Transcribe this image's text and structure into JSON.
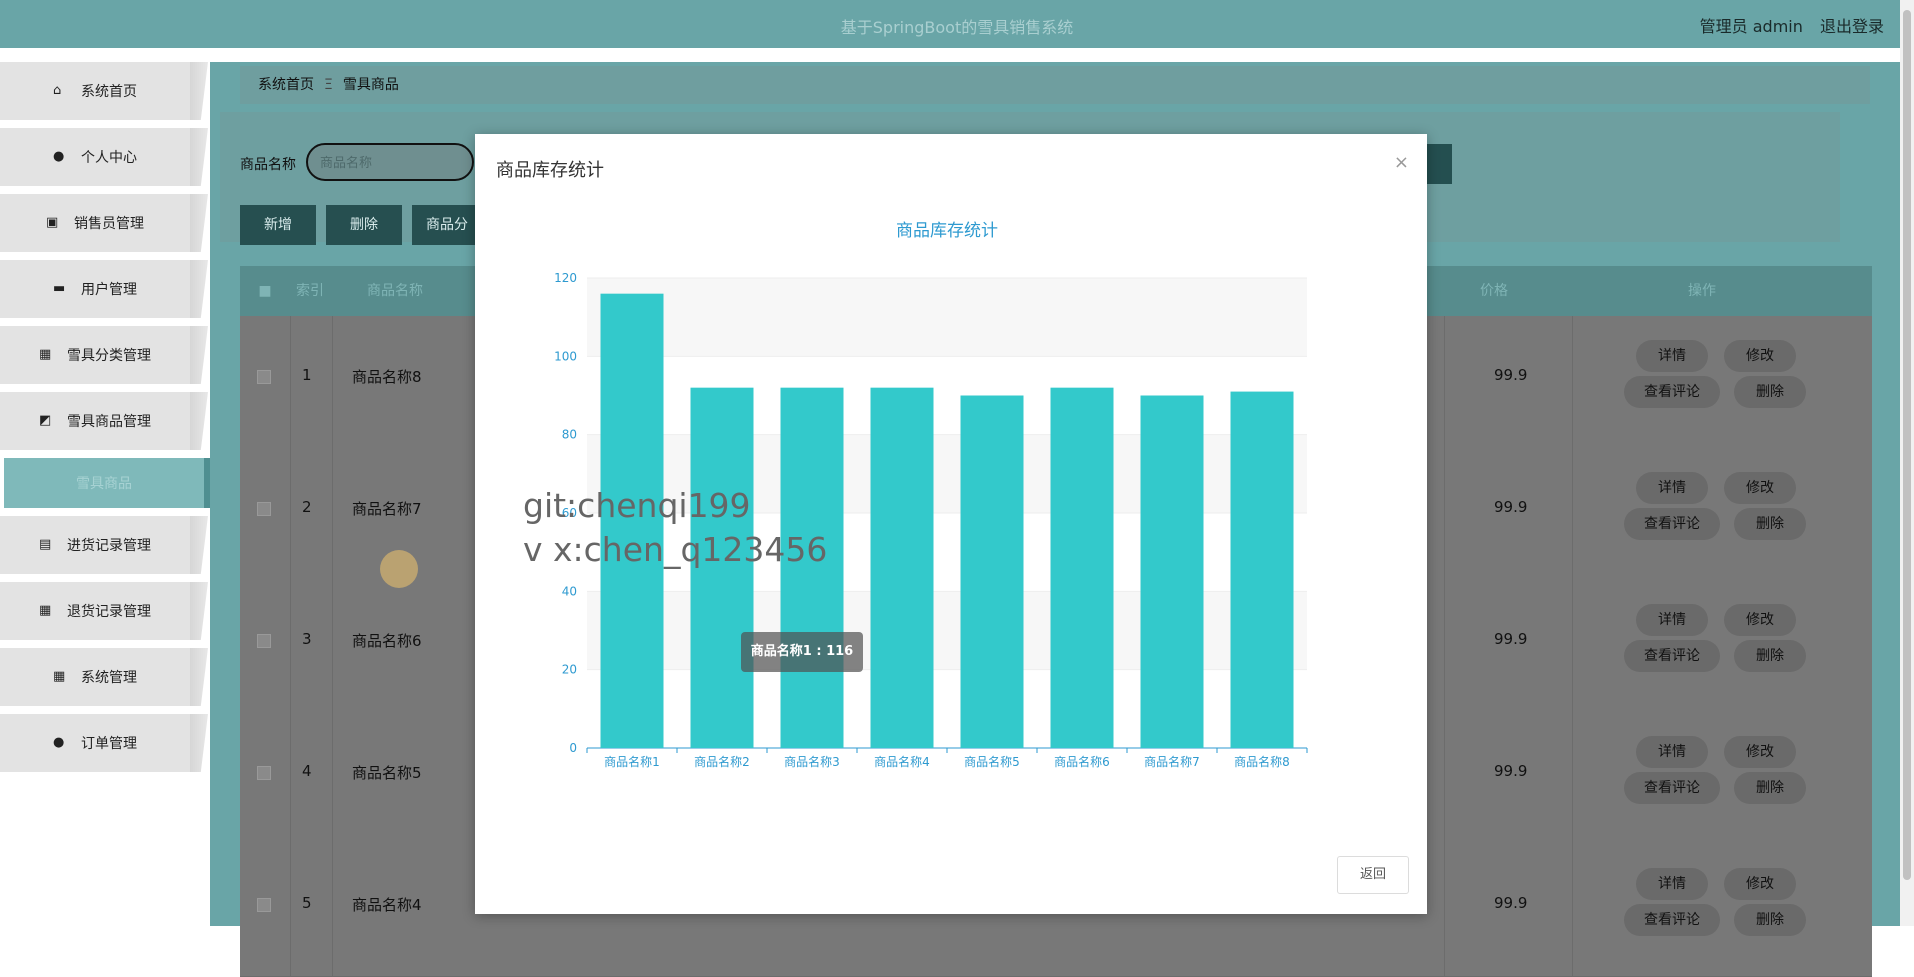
{
  "header": {
    "title": "基于SpringBoot的雪具销售系统",
    "user": "管理员 admin",
    "logout": "退出登录"
  },
  "sidebar": {
    "items": [
      {
        "label": "系统首页",
        "icon": "home-icon"
      },
      {
        "label": "个人中心",
        "icon": "user-icon"
      },
      {
        "label": "销售员管理",
        "icon": "id-card-icon"
      },
      {
        "label": "用户管理",
        "icon": "chat-icon"
      },
      {
        "label": "雪具分类管理",
        "icon": "briefcase-icon"
      },
      {
        "label": "雪具商品管理",
        "icon": "chart-icon"
      }
    ],
    "active_sub": "雪具商品",
    "items2": [
      {
        "label": "进货记录管理",
        "icon": "clipboard-icon"
      },
      {
        "label": "退货记录管理",
        "icon": "grid-icon"
      },
      {
        "label": "系统管理",
        "icon": "grid-icon"
      },
      {
        "label": "订单管理",
        "icon": "user-icon"
      }
    ]
  },
  "breadcrumb": {
    "home": "系统首页",
    "sep": "Ξ",
    "current": "雪具商品"
  },
  "search": {
    "label": "商品名称",
    "placeholder": "商品名称"
  },
  "toolbar": {
    "add": "新增",
    "delete": "删除",
    "category": "商品分"
  },
  "table": {
    "headers": {
      "index": "索引",
      "name": "商品名称",
      "price": "价格",
      "ops": "操作"
    },
    "rows": [
      {
        "index": "1",
        "name": "商品名称8",
        "price": "99.9"
      },
      {
        "index": "2",
        "name": "商品名称7",
        "price": "99.9"
      },
      {
        "index": "3",
        "name": "商品名称6",
        "price": "99.9"
      },
      {
        "index": "4",
        "name": "商品名称5",
        "price": "99.9"
      },
      {
        "index": "5",
        "name": "商品名称4",
        "price": "99.9"
      }
    ],
    "ops": {
      "detail": "详情",
      "edit": "修改",
      "comments": "查看评论",
      "delete": "删除"
    }
  },
  "dialog": {
    "title": "商品库存统计",
    "close": "×",
    "back": "返回"
  },
  "chart_data": {
    "type": "bar",
    "title": "商品库存统计",
    "categories": [
      "商品名称1",
      "商品名称2",
      "商品名称3",
      "商品名称4",
      "商品名称5",
      "商品名称6",
      "商品名称7",
      "商品名称8"
    ],
    "values": [
      116,
      92,
      92,
      92,
      90,
      92,
      90,
      91
    ],
    "ylim": [
      0,
      120
    ],
    "yticks": [
      0,
      20,
      40,
      60,
      80,
      100,
      120
    ],
    "xlabel": "",
    "ylabel": "",
    "color": "#33c9cb",
    "grid": true
  },
  "tooltip": {
    "text": "商品名称1 : 116"
  },
  "watermark": {
    "line1": "git:chenqi199",
    "line2": "v x:chen_q123456"
  }
}
